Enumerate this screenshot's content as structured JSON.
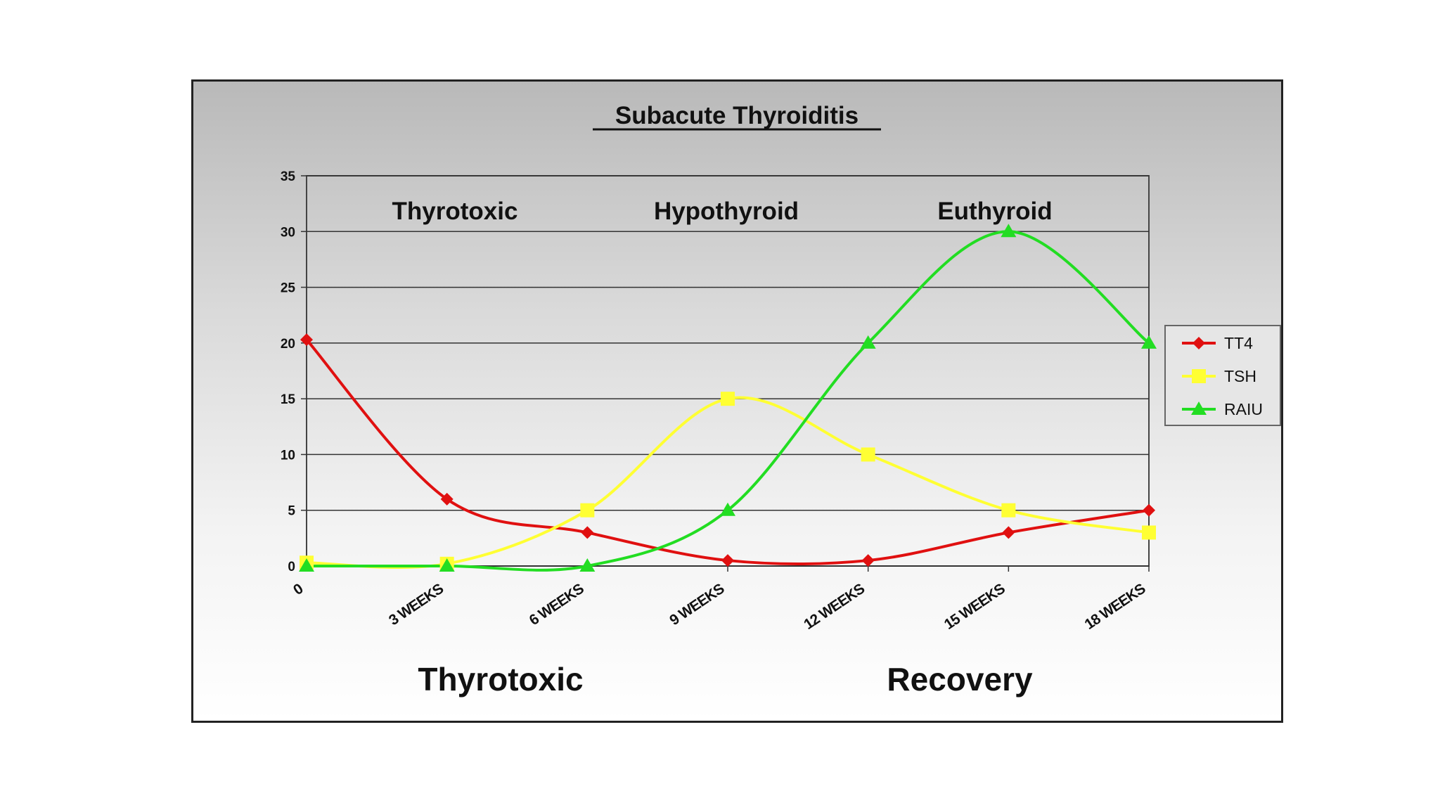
{
  "chart_data": {
    "type": "line",
    "title": "Subacute Thyroiditis",
    "categories": [
      "0",
      "3 WEEKS",
      "6 WEEKS",
      "9 WEEKS",
      "12 WEEKS",
      "15 WEEKS",
      "18 WEEKS"
    ],
    "y_ticks": [
      "0",
      "5",
      "10",
      "15",
      "20",
      "25",
      "30",
      "35"
    ],
    "ylim": [
      0,
      35
    ],
    "grid": true,
    "series": [
      {
        "name": "TT4",
        "color": "#e01010",
        "marker": "diamond",
        "values": [
          20.3,
          6,
          3,
          0.5,
          0.5,
          3,
          5
        ]
      },
      {
        "name": "TSH",
        "color": "#ffff33",
        "marker": "square",
        "values": [
          0.3,
          0.2,
          5,
          15,
          10,
          5,
          3
        ]
      },
      {
        "name": "RAIU",
        "color": "#22dd22",
        "marker": "triangle",
        "values": [
          0,
          0,
          0,
          5,
          20,
          30,
          20
        ]
      }
    ],
    "legend_position": "right",
    "annotations": {
      "top": [
        "Thyrotoxic",
        "Hypothyroid",
        "Euthyroid"
      ],
      "bottom": [
        "Thyrotoxic",
        "Recovery"
      ]
    }
  }
}
